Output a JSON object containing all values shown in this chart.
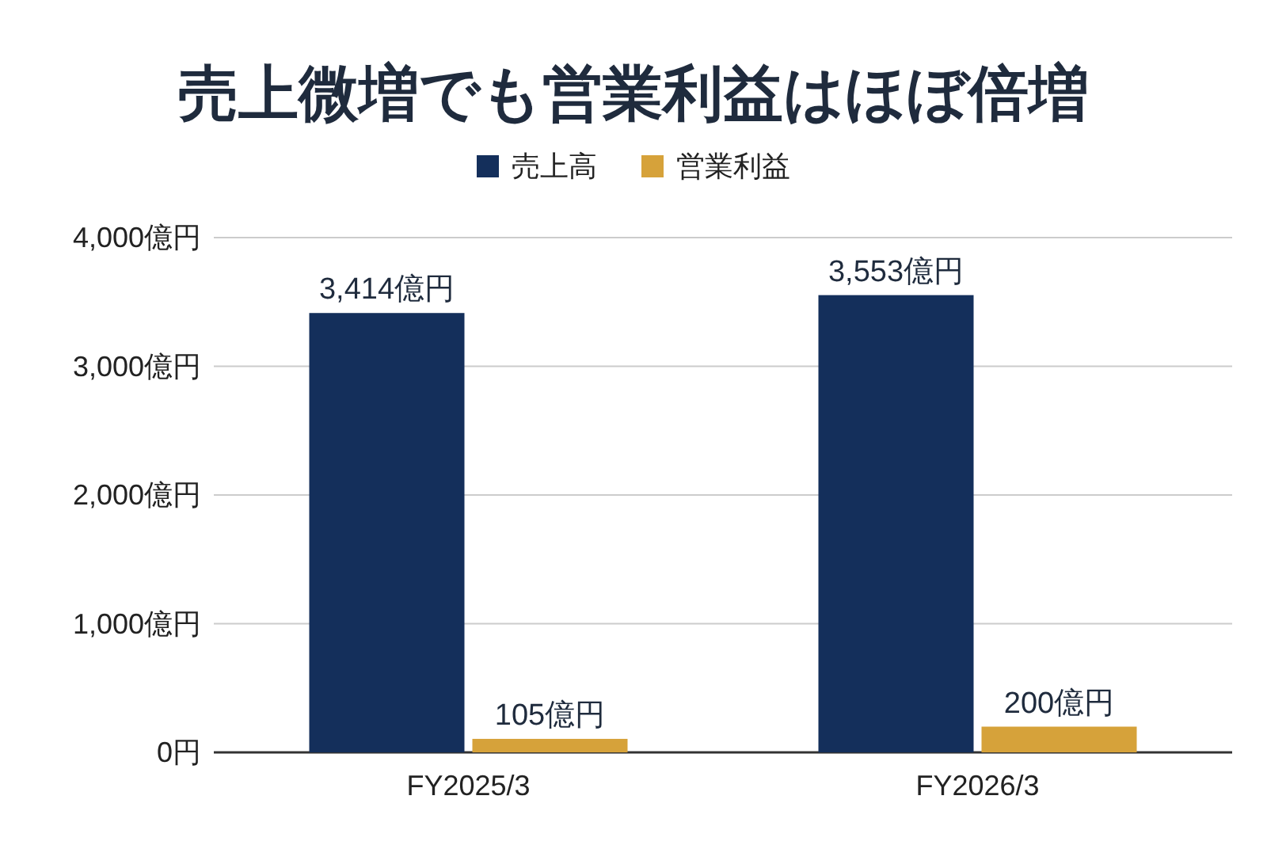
{
  "chart_data": {
    "type": "bar",
    "title": "売上微増でも営業利益はほぼ倍増",
    "categories": [
      "FY2025/3",
      "FY2026/3"
    ],
    "series": [
      {
        "name": "売上高",
        "color": "#142f5b",
        "values": [
          3414,
          3553
        ],
        "value_labels": [
          "3,414億円",
          "3,553億円"
        ]
      },
      {
        "name": "営業利益",
        "color": "#d6a23a",
        "values": [
          105,
          200
        ],
        "value_labels": [
          "105億円",
          "200億円"
        ]
      }
    ],
    "ylim": [
      0,
      4000
    ],
    "yticks": [
      {
        "value": 0,
        "label": "0円"
      },
      {
        "value": 1000,
        "label": "1,000億円"
      },
      {
        "value": 2000,
        "label": "2,000億円"
      },
      {
        "value": 3000,
        "label": "3,000億円"
      },
      {
        "value": 4000,
        "label": "4,000億円"
      }
    ],
    "grid": "y",
    "legend": "top"
  }
}
